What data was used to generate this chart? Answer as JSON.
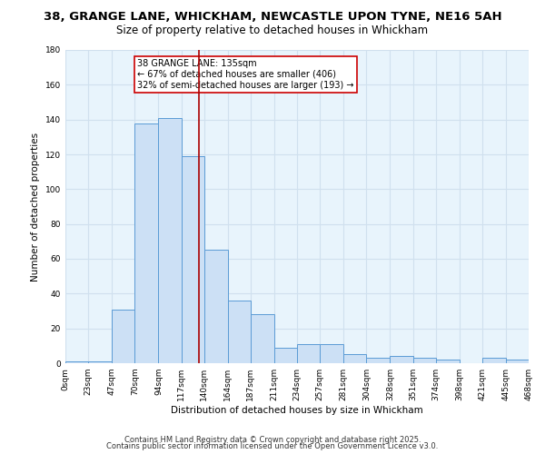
{
  "title_line1": "38, GRANGE LANE, WHICKHAM, NEWCASTLE UPON TYNE, NE16 5AH",
  "title_line2": "Size of property relative to detached houses in Whickham",
  "xlabel": "Distribution of detached houses by size in Whickham",
  "ylabel": "Number of detached properties",
  "bin_edges": [
    0,
    23,
    47,
    70,
    94,
    117,
    140,
    164,
    187,
    211,
    234,
    257,
    281,
    304,
    328,
    351,
    374,
    398,
    421,
    445,
    468
  ],
  "bar_heights": [
    1,
    1,
    31,
    138,
    141,
    119,
    65,
    36,
    28,
    9,
    11,
    11,
    5,
    3,
    4,
    3,
    2,
    0,
    3,
    2
  ],
  "bar_face_color": "#cce0f5",
  "bar_edge_color": "#5b9bd5",
  "vline_x": 135,
  "vline_color": "#aa0000",
  "annotation_line1": "38 GRANGE LANE: 135sqm",
  "annotation_line2": "← 67% of detached houses are smaller (406)",
  "annotation_line3": "32% of semi-detached houses are larger (193) →",
  "annotation_box_color": "#ffffff",
  "annotation_border_color": "#cc0000",
  "ylim": [
    0,
    180
  ],
  "tick_labels": [
    "0sqm",
    "23sqm",
    "47sqm",
    "70sqm",
    "94sqm",
    "117sqm",
    "140sqm",
    "164sqm",
    "187sqm",
    "211sqm",
    "234sqm",
    "257sqm",
    "281sqm",
    "304sqm",
    "328sqm",
    "351sqm",
    "374sqm",
    "398sqm",
    "421sqm",
    "445sqm",
    "468sqm"
  ],
  "footer_line1": "Contains HM Land Registry data © Crown copyright and database right 2025.",
  "footer_line2": "Contains public sector information licensed under the Open Government Licence v3.0.",
  "bg_color": "#e8f4fc",
  "fig_bg_color": "#ffffff",
  "grid_color": "#d0e0ee",
  "title_fontsize": 9.5,
  "subtitle_fontsize": 8.5,
  "axis_label_fontsize": 7.5,
  "tick_fontsize": 6.5,
  "footer_fontsize": 6.0,
  "annot_fontsize": 7.0
}
